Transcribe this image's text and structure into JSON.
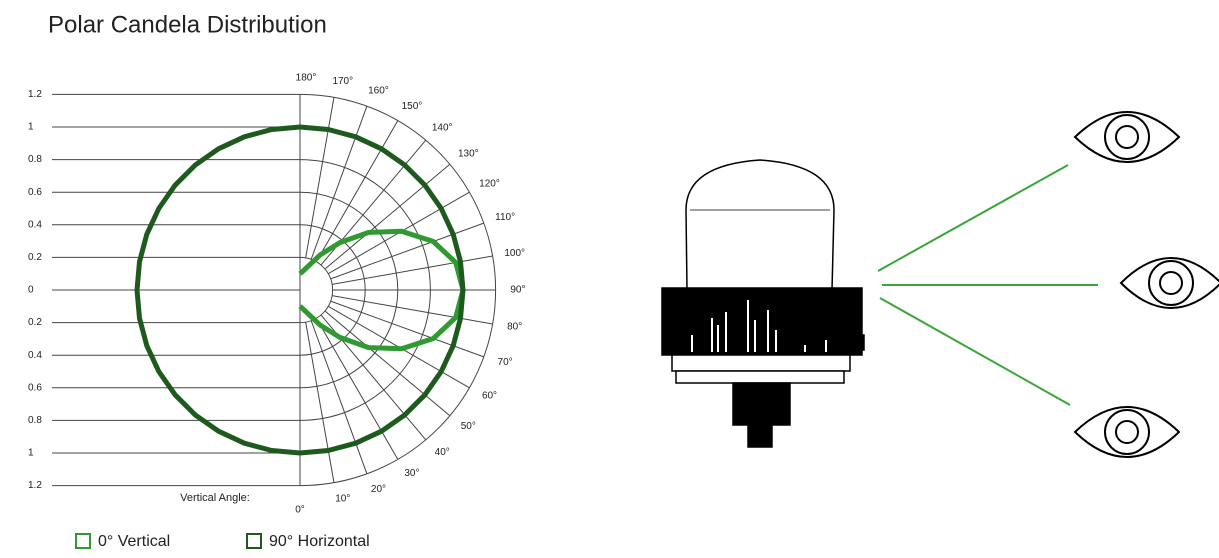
{
  "chart_data": {
    "type": "polar",
    "title": "Polar Candela Distribution",
    "angle_label": "Vertical Angle:",
    "x": [
      0,
      10,
      20,
      30,
      40,
      50,
      60,
      70,
      80,
      90,
      100,
      110,
      120,
      130,
      140,
      150,
      160,
      170,
      180
    ],
    "xticks": [
      {
        "value": 0,
        "label": "0°"
      },
      {
        "value": 10,
        "label": "10°"
      },
      {
        "value": 20,
        "label": "20°"
      },
      {
        "value": 30,
        "label": "30°"
      },
      {
        "value": 40,
        "label": "40°"
      },
      {
        "value": 50,
        "label": "50°"
      },
      {
        "value": 60,
        "label": "60°"
      },
      {
        "value": 70,
        "label": "70°"
      },
      {
        "value": 80,
        "label": "80°"
      },
      {
        "value": 90,
        "label": "90°"
      },
      {
        "value": 100,
        "label": "100°"
      },
      {
        "value": 110,
        "label": "110°"
      },
      {
        "value": 120,
        "label": "120°"
      },
      {
        "value": 130,
        "label": "130°"
      },
      {
        "value": 140,
        "label": "140°"
      },
      {
        "value": 150,
        "label": "150°"
      },
      {
        "value": 160,
        "label": "160°"
      },
      {
        "value": 170,
        "label": "170°"
      },
      {
        "value": 180,
        "label": "180°"
      }
    ],
    "ylim": [
      -1.2,
      1.2
    ],
    "yticks": [
      1.2,
      1,
      0.8,
      0.6,
      0.4,
      0.2,
      0,
      {
        "value": -0.2,
        "label": "0.2"
      },
      {
        "value": -0.4,
        "label": "0.4"
      },
      {
        "value": -0.6,
        "label": "0.6"
      },
      {
        "value": -0.8,
        "label": "0.8"
      },
      {
        "value": -1,
        "label": "1"
      },
      {
        "value": -1.2,
        "label": "1.2"
      }
    ],
    "series": [
      {
        "name": "0° Vertical",
        "color": "#2f9a2f",
        "mirror": false,
        "values": [
          0.1,
          0.12,
          0.16,
          0.25,
          0.38,
          0.55,
          0.72,
          0.87,
          0.97,
          1.0,
          0.97,
          0.87,
          0.72,
          0.55,
          0.38,
          0.25,
          0.16,
          0.12,
          0.1
        ]
      },
      {
        "name": "90° Horizontal",
        "color": "#1e5a1e",
        "mirror": true,
        "values": [
          1,
          1,
          1,
          1,
          1,
          1,
          1,
          1,
          1,
          1,
          1,
          1,
          1,
          1,
          1,
          1,
          1,
          1,
          1
        ]
      }
    ]
  }
}
